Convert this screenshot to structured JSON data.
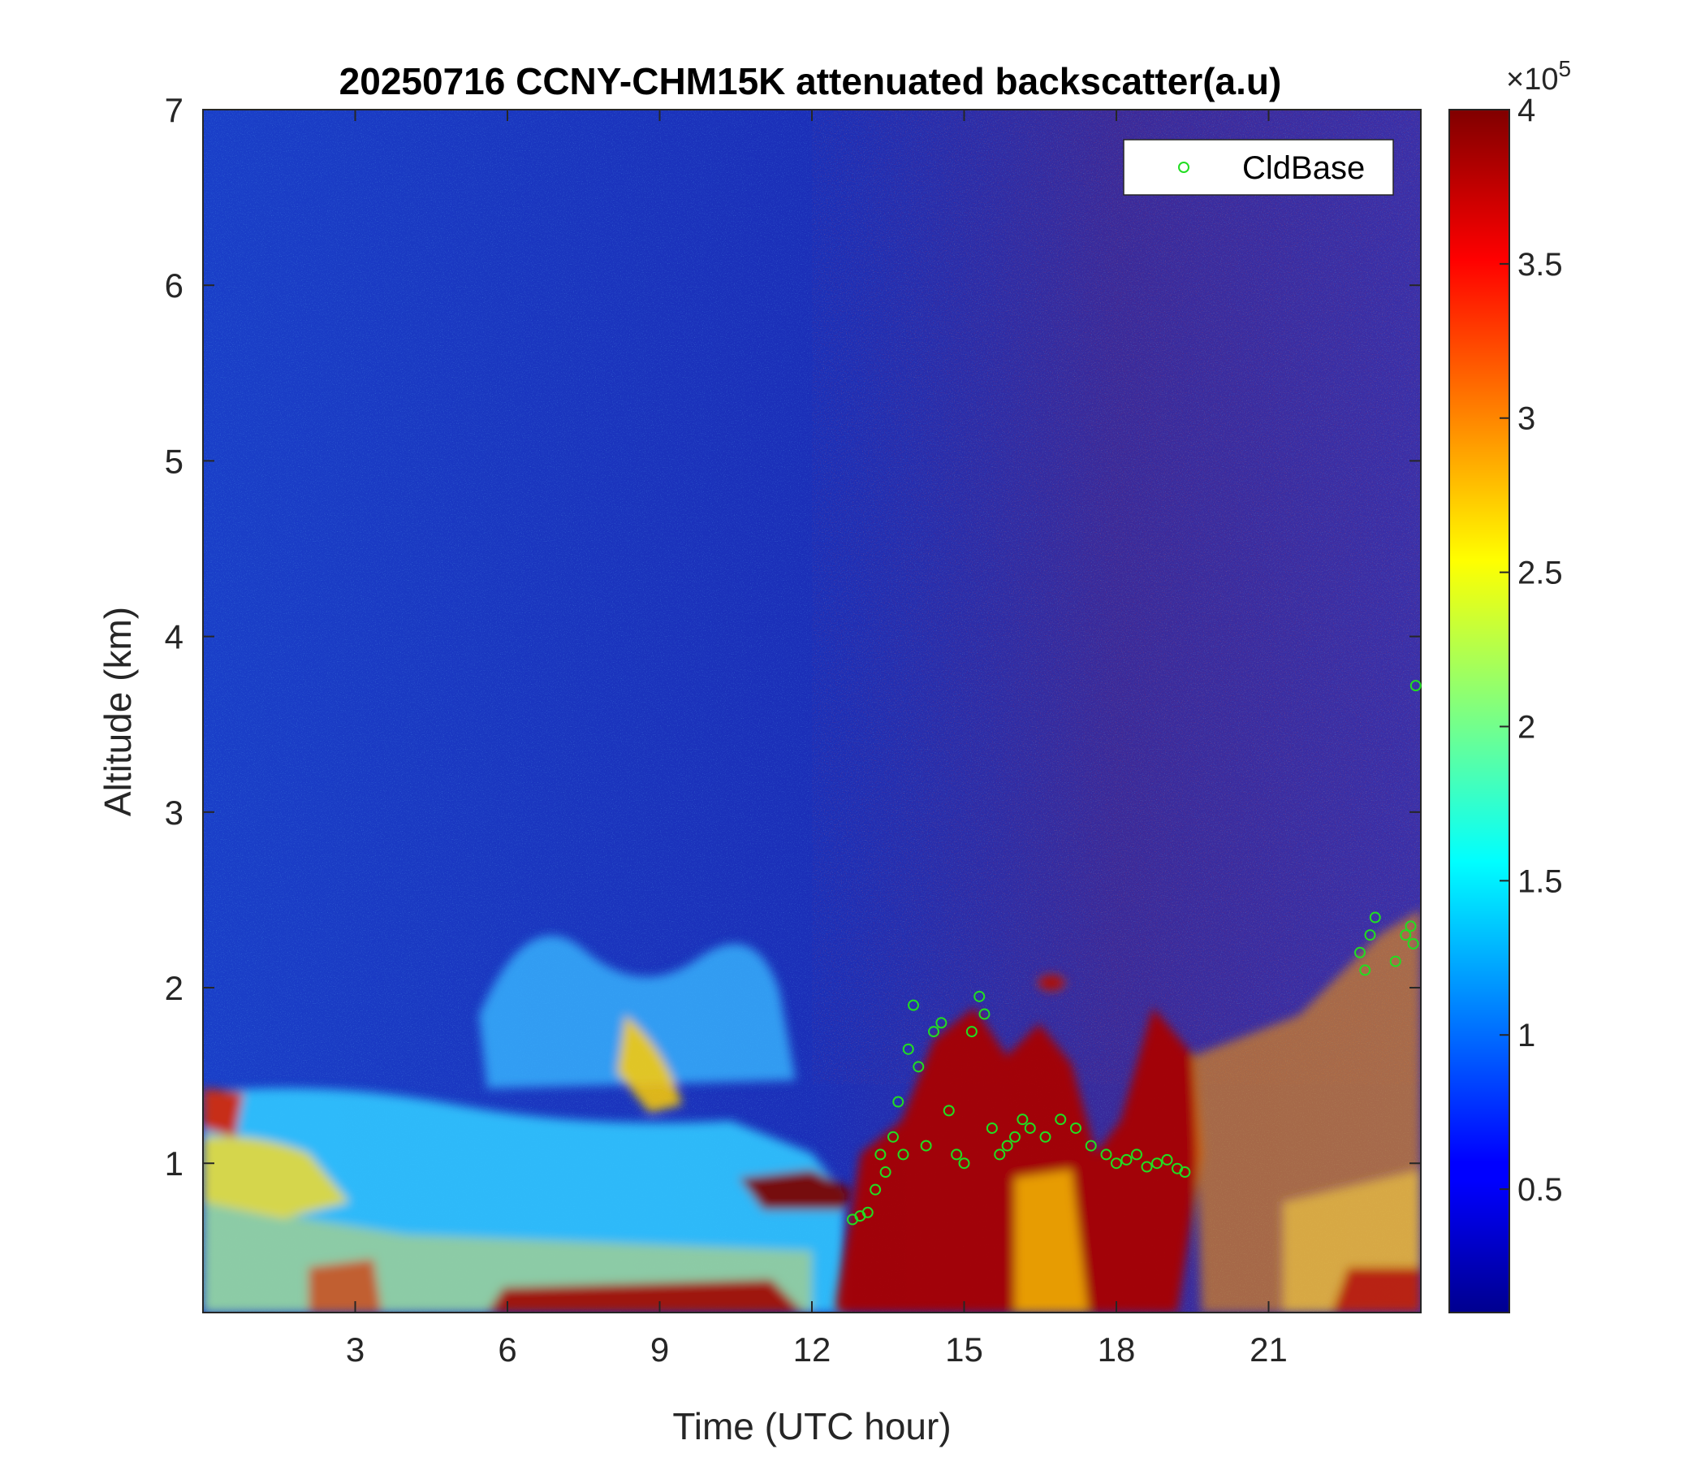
{
  "chart_data": {
    "type": "heatmap",
    "title": "20250716 CCNY-CHM15K attenuated backscatter(a.u)",
    "xlabel": "Time (UTC hour)",
    "ylabel": "Altitude (km)",
    "xlim": [
      0,
      24
    ],
    "ylim": [
      0.15,
      7
    ],
    "x_ticks": [
      3,
      6,
      9,
      12,
      15,
      18,
      21
    ],
    "x_tick_labels": [
      "3",
      "6",
      "9",
      "12",
      "15",
      "18",
      "21"
    ],
    "y_ticks": [
      1,
      2,
      3,
      4,
      5,
      6,
      7
    ],
    "y_tick_labels": [
      "1",
      "2",
      "3",
      "4",
      "5",
      "6",
      "7"
    ],
    "colorbar": {
      "colormap": "jet",
      "clim": [
        0.1,
        4
      ],
      "ticks": [
        0.5,
        1,
        1.5,
        2,
        2.5,
        3,
        3.5,
        4
      ],
      "tick_labels": [
        "0.5",
        "1",
        "1.5",
        "2",
        "2.5",
        "3",
        "3.5",
        "4"
      ],
      "exponent_label": "×10",
      "exponent_power": "5"
    },
    "legend": {
      "position": "top-right",
      "entries": [
        "CldBase"
      ]
    },
    "series": [
      {
        "name": "CldBase",
        "marker": "circle-open",
        "color": "#22dd22",
        "x": [
          12.8,
          12.95,
          13.1,
          13.25,
          13.35,
          13.45,
          13.6,
          13.7,
          13.8,
          13.9,
          14.0,
          14.1,
          14.25,
          14.4,
          14.55,
          14.7,
          14.85,
          15.0,
          15.15,
          15.3,
          15.4,
          15.55,
          15.7,
          15.85,
          16.0,
          16.15,
          16.3,
          16.6,
          16.9,
          17.2,
          17.5,
          17.8,
          18.0,
          18.2,
          18.4,
          18.6,
          18.8,
          19.0,
          19.2,
          19.35,
          22.8,
          22.9,
          23.0,
          23.1,
          23.5,
          23.7,
          23.8,
          23.85,
          23.9
        ],
        "y": [
          0.68,
          0.7,
          0.72,
          0.85,
          1.05,
          0.95,
          1.15,
          1.35,
          1.05,
          1.65,
          1.9,
          1.55,
          1.1,
          1.75,
          1.8,
          1.3,
          1.05,
          1.0,
          1.75,
          1.95,
          1.85,
          1.2,
          1.05,
          1.1,
          1.15,
          1.25,
          1.2,
          1.15,
          1.25,
          1.2,
          1.1,
          1.05,
          1.0,
          1.02,
          1.05,
          0.98,
          1.0,
          1.02,
          0.97,
          0.95,
          2.2,
          2.1,
          2.3,
          2.4,
          2.15,
          2.3,
          2.35,
          2.25,
          3.72
        ]
      }
    ]
  }
}
